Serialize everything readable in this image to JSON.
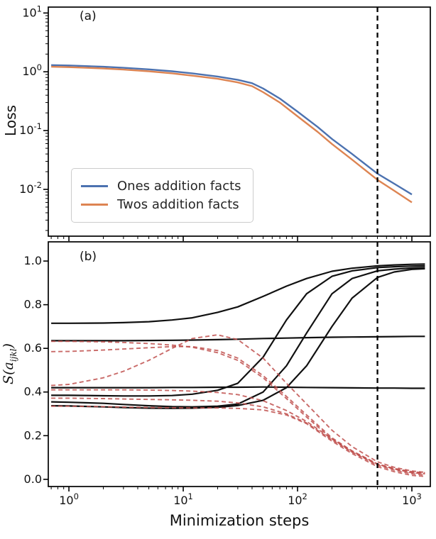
{
  "figure": {
    "panel_a_label": "(a)",
    "panel_b_label": "(b)",
    "xlabel": "Minimization steps",
    "ylabel_a": "Loss",
    "ylabel_b_prefix": "S(a",
    "ylabel_b_sub": "ijkl",
    "ylabel_b_suffix": ")"
  },
  "colors": {
    "blue": "#4c72b0",
    "orange": "#dd8452",
    "black": "#111111",
    "red_dashed": "#c0504d",
    "axis": "#000000"
  },
  "chart_data": [
    {
      "type": "line",
      "panel": "a",
      "title": "(a)",
      "ylabel": "Loss",
      "x_scale": "log",
      "y_scale": "log",
      "xlim": [
        0.66,
        1450
      ],
      "ylim": [
        0.0016,
        12.6
      ],
      "x_ticks": [
        1,
        10,
        100,
        1000
      ],
      "y_ticks": [
        0.01,
        0.1,
        1,
        10
      ],
      "vline_x": 500,
      "legend_position": "lower left",
      "x": [
        0.7,
        1,
        2,
        3,
        5,
        8,
        12,
        20,
        30,
        40,
        50,
        70,
        100,
        150,
        200,
        300,
        500,
        700,
        1000
      ],
      "series": [
        {
          "name": "Ones addition facts",
          "color": "#4c72b0",
          "style": "solid",
          "lw": 2.4,
          "y": [
            1.3,
            1.28,
            1.22,
            1.17,
            1.1,
            1.02,
            0.94,
            0.83,
            0.73,
            0.64,
            0.52,
            0.35,
            0.21,
            0.115,
            0.072,
            0.04,
            0.0185,
            0.0125,
            0.0082
          ]
        },
        {
          "name": "Twos addition facts",
          "color": "#dd8452",
          "style": "solid",
          "lw": 2.4,
          "y": [
            1.22,
            1.2,
            1.14,
            1.09,
            1.02,
            0.94,
            0.86,
            0.76,
            0.66,
            0.57,
            0.45,
            0.3,
            0.175,
            0.095,
            0.059,
            0.032,
            0.0145,
            0.0095,
            0.006
          ]
        }
      ]
    },
    {
      "type": "line",
      "panel": "b",
      "title": "(b)",
      "ylabel": "S(a_ijkl)",
      "xlabel": "Minimization steps",
      "x_scale": "log",
      "y_scale": "linear",
      "xlim": [
        0.66,
        1450
      ],
      "ylim": [
        -0.033,
        1.088
      ],
      "x_ticks": [
        1,
        10,
        100,
        1000
      ],
      "y_ticks": [
        0.0,
        0.2,
        0.4,
        0.6,
        0.8,
        1.0
      ],
      "vline_x": 500,
      "x": [
        0.7,
        1,
        2,
        3,
        5,
        8,
        12,
        20,
        30,
        50,
        80,
        120,
        200,
        300,
        500,
        700,
        1000,
        1300
      ],
      "series": [
        {
          "name": "solid-1",
          "color": "#111111",
          "style": "solid",
          "lw": 2.2,
          "y": [
            0.715,
            0.715,
            0.716,
            0.718,
            0.722,
            0.73,
            0.74,
            0.765,
            0.79,
            0.838,
            0.885,
            0.92,
            0.953,
            0.967,
            0.978,
            0.982,
            0.985,
            0.986
          ]
        },
        {
          "name": "solid-2",
          "color": "#111111",
          "style": "solid",
          "lw": 2.2,
          "y": [
            0.635,
            0.635,
            0.635,
            0.635,
            0.636,
            0.637,
            0.638,
            0.64,
            0.642,
            0.645,
            0.647,
            0.649,
            0.651,
            0.652,
            0.653,
            0.654,
            0.655,
            0.655
          ]
        },
        {
          "name": "solid-3",
          "color": "#111111",
          "style": "solid",
          "lw": 2.2,
          "y": [
            0.42,
            0.42,
            0.42,
            0.42,
            0.42,
            0.421,
            0.421,
            0.422,
            0.422,
            0.423,
            0.422,
            0.421,
            0.42,
            0.419,
            0.418,
            0.418,
            0.417,
            0.417
          ]
        },
        {
          "name": "solid-4",
          "color": "#111111",
          "style": "solid",
          "lw": 2.2,
          "y": [
            0.385,
            0.385,
            0.383,
            0.382,
            0.382,
            0.384,
            0.39,
            0.408,
            0.44,
            0.56,
            0.73,
            0.85,
            0.93,
            0.955,
            0.97,
            0.974,
            0.977,
            0.978
          ]
        },
        {
          "name": "solid-5",
          "color": "#111111",
          "style": "solid",
          "lw": 2.2,
          "y": [
            0.355,
            0.353,
            0.348,
            0.343,
            0.337,
            0.333,
            0.332,
            0.335,
            0.345,
            0.4,
            0.52,
            0.67,
            0.85,
            0.92,
            0.955,
            0.963,
            0.968,
            0.97
          ]
        },
        {
          "name": "solid-6",
          "color": "#111111",
          "style": "solid",
          "lw": 2.2,
          "y": [
            0.337,
            0.336,
            0.332,
            0.329,
            0.326,
            0.325,
            0.326,
            0.33,
            0.338,
            0.362,
            0.42,
            0.52,
            0.7,
            0.83,
            0.925,
            0.95,
            0.962,
            0.965
          ]
        },
        {
          "name": "dashed-1",
          "color": "#c0504d",
          "style": "dashed",
          "lw": 1.9,
          "y": [
            0.632,
            0.632,
            0.63,
            0.627,
            0.622,
            0.615,
            0.605,
            0.58,
            0.545,
            0.465,
            0.37,
            0.285,
            0.185,
            0.125,
            0.068,
            0.047,
            0.032,
            0.027
          ]
        },
        {
          "name": "dashed-2",
          "color": "#c0504d",
          "style": "dashed",
          "lw": 1.9,
          "y": [
            0.585,
            0.586,
            0.592,
            0.597,
            0.603,
            0.608,
            0.608,
            0.59,
            0.555,
            0.475,
            0.38,
            0.295,
            0.19,
            0.13,
            0.07,
            0.05,
            0.035,
            0.03
          ]
        },
        {
          "name": "dashed-3",
          "color": "#c0504d",
          "style": "dashed",
          "lw": 1.9,
          "y": [
            0.43,
            0.435,
            0.465,
            0.495,
            0.545,
            0.6,
            0.645,
            0.662,
            0.64,
            0.555,
            0.44,
            0.345,
            0.225,
            0.15,
            0.08,
            0.055,
            0.038,
            0.032
          ]
        },
        {
          "name": "dashed-4",
          "color": "#c0504d",
          "style": "dashed",
          "lw": 1.9,
          "y": [
            0.41,
            0.41,
            0.41,
            0.41,
            0.409,
            0.407,
            0.404,
            0.398,
            0.388,
            0.36,
            0.315,
            0.265,
            0.185,
            0.13,
            0.07,
            0.048,
            0.03,
            0.025
          ]
        },
        {
          "name": "dashed-5",
          "color": "#c0504d",
          "style": "dashed",
          "lw": 1.9,
          "y": [
            0.372,
            0.372,
            0.37,
            0.368,
            0.366,
            0.364,
            0.362,
            0.358,
            0.35,
            0.332,
            0.3,
            0.258,
            0.18,
            0.125,
            0.065,
            0.042,
            0.025,
            0.02
          ]
        },
        {
          "name": "dashed-6",
          "color": "#c0504d",
          "style": "dashed",
          "lw": 1.9,
          "y": [
            0.335,
            0.335,
            0.333,
            0.331,
            0.329,
            0.328,
            0.327,
            0.327,
            0.325,
            0.318,
            0.295,
            0.255,
            0.175,
            0.118,
            0.058,
            0.035,
            0.018,
            0.013
          ]
        }
      ]
    }
  ]
}
